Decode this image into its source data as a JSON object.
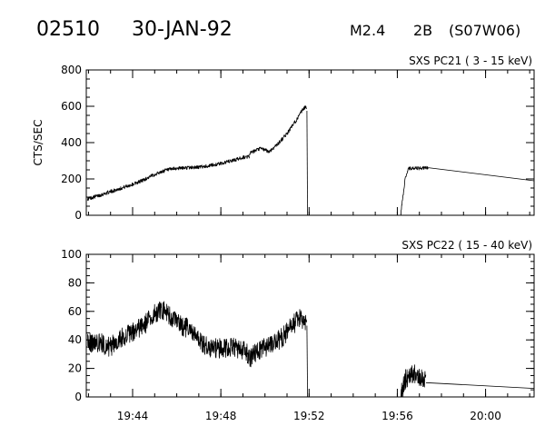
{
  "header": {
    "event_id": "02510",
    "date": "30-JAN-92",
    "flare_class": "M2.4",
    "optical_class": "2B",
    "location": "(S07W06)"
  },
  "chart_data": [
    {
      "type": "line",
      "title": "SXS PC21  (  3 - 15 keV)",
      "ylabel": "CTS/SEC",
      "xlabel": "",
      "x_unit": "minutes after 19:00 UT",
      "xlim": [
        41.9,
        62.2
      ],
      "ylim": [
        0,
        800
      ],
      "yticks": [
        0,
        200,
        400,
        600,
        800
      ],
      "xticks": [
        "19:44",
        "19:48",
        "19:52",
        "19:56",
        "20:00"
      ],
      "grid": false,
      "noise_amplitude": 10,
      "series": [
        {
          "x": [
            41.95,
            42.5,
            43,
            43.5,
            44,
            44.5,
            45,
            45.5,
            46,
            46.5,
            47,
            47.5,
            48,
            48.5,
            49,
            49.3
          ],
          "y": [
            90,
            110,
            130,
            150,
            170,
            195,
            225,
            248,
            258,
            262,
            265,
            273,
            285,
            300,
            318,
            325
          ]
        },
        {
          "x": [
            49.3,
            49.8,
            50.2,
            50.6,
            51.0,
            51.4,
            51.7,
            51.85,
            51.9
          ],
          "y": [
            340,
            368,
            350,
            395,
            450,
            520,
            578,
            600,
            575
          ]
        },
        {
          "x": [
            51.9,
            51.93
          ],
          "y": [
            575,
            0
          ]
        },
        {
          "x": [
            56.15,
            56.35,
            56.5,
            57,
            57.4
          ],
          "y": [
            0,
            200,
            258,
            258,
            262
          ]
        },
        {
          "x": [
            57.4,
            62.2
          ],
          "y": [
            262,
            190
          ]
        }
      ]
    },
    {
      "type": "line",
      "title": "SXS PC22  ( 15 - 40 keV)",
      "ylabel": "",
      "xlabel": "",
      "x_unit": "minutes after 19:00 UT",
      "xlim": [
        41.9,
        62.2
      ],
      "ylim": [
        0,
        100
      ],
      "yticks": [
        0,
        20,
        40,
        60,
        80,
        100
      ],
      "xticks": [
        "19:44",
        "19:48",
        "19:52",
        "19:56",
        "20:00"
      ],
      "grid": false,
      "noise_amplitude": 7,
      "series": [
        {
          "x": [
            41.95,
            42.5,
            43,
            43.5,
            44,
            44.5,
            45,
            45.3,
            45.6,
            46,
            46.5,
            47,
            47.5,
            48,
            48.5,
            49,
            49.2
          ],
          "y": [
            38,
            38,
            35,
            42,
            45,
            50,
            58,
            62,
            58,
            52,
            48,
            40,
            34,
            34,
            35,
            33,
            30
          ]
        },
        {
          "x": [
            49.2,
            49.6,
            50.0,
            50.4,
            50.8,
            51.2,
            51.6,
            51.9
          ],
          "y": [
            25,
            32,
            35,
            37,
            42,
            50,
            55,
            50
          ]
        },
        {
          "x": [
            51.9,
            51.93
          ],
          "y": [
            50,
            0
          ]
        },
        {
          "x": [
            56.15,
            56.35,
            56.6,
            57,
            57.3
          ],
          "y": [
            0,
            12,
            17,
            15,
            12
          ]
        },
        {
          "x": [
            57.3,
            62.2
          ],
          "y": [
            10,
            6
          ]
        }
      ]
    }
  ]
}
